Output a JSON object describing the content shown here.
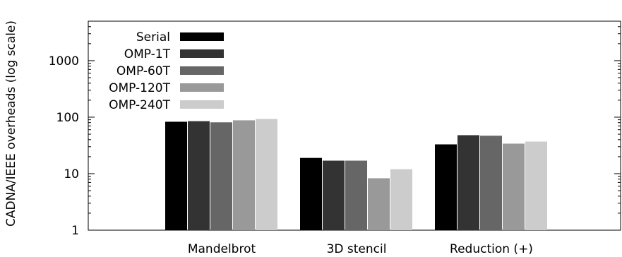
{
  "chart_data": {
    "type": "bar",
    "title": "",
    "xlabel": "",
    "ylabel": "CADNA/IEEE overheads (log scale)",
    "yscale": "log",
    "ylim": [
      1,
      5000
    ],
    "yticks": [
      {
        "value": 1,
        "label": "1"
      },
      {
        "value": 10,
        "label": "10"
      },
      {
        "value": 100,
        "label": "100"
      },
      {
        "value": 1000,
        "label": "1000"
      }
    ],
    "grid": false,
    "legend_position": "top-left",
    "categories": [
      "Mandelbrot",
      "3D stencil",
      "Reduction (+)"
    ],
    "series": [
      {
        "name": "Serial",
        "color": "#000000",
        "values": [
          83,
          19,
          33
        ]
      },
      {
        "name": "OMP-1T",
        "color": "#333333",
        "values": [
          85,
          17,
          48
        ]
      },
      {
        "name": "OMP-60T",
        "color": "#666666",
        "values": [
          81,
          17,
          47
        ]
      },
      {
        "name": "OMP-120T",
        "color": "#999999",
        "values": [
          88,
          8.3,
          34
        ]
      },
      {
        "name": "OMP-240T",
        "color": "#cccccc",
        "values": [
          93,
          12,
          37
        ]
      }
    ]
  }
}
